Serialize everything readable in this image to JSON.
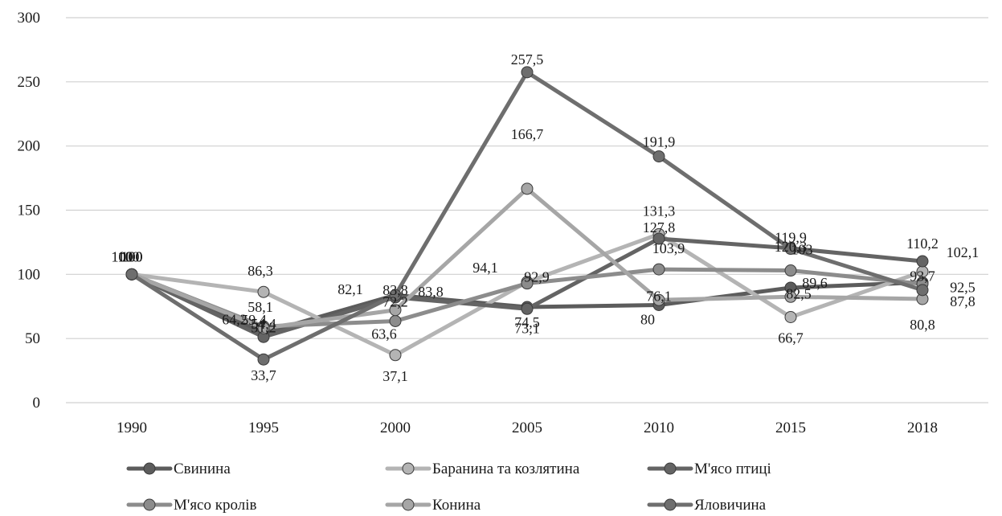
{
  "chart_data": {
    "type": "line",
    "title": "",
    "xlabel": "",
    "ylabel": "",
    "categories": [
      "1990",
      "1995",
      "2000",
      "2005",
      "2010",
      "2015",
      "2018"
    ],
    "ylim": [
      0,
      300
    ],
    "yticks": [
      0,
      50,
      100,
      150,
      200,
      250,
      300
    ],
    "grid": true,
    "legend_position": "bottom",
    "series": [
      {
        "name": "Свинина",
        "color": "#5c5c5c",
        "values": [
          100,
          54.4,
          83.8,
          74.5,
          76.1,
          89.6,
          93.7
        ],
        "labels": [
          "100",
          "54,4",
          "83,8",
          "74,5",
          "76,1",
          "89,6",
          "93,7"
        ]
      },
      {
        "name": "Баранина  та козлятина",
        "color": "#b4b4b4",
        "values": [
          100,
          86.3,
          37.1,
          94.1,
          131.3,
          66.7,
          102.1
        ],
        "labels": [
          "100",
          "86,3",
          "37,1",
          "94,1",
          "131,3",
          "66,7",
          "102,1"
        ]
      },
      {
        "name": "М'ясо птиці",
        "color": "#646464",
        "values": [
          100,
          51.2,
          82.1,
          73.1,
          127.8,
          120.3,
          110.2
        ],
        "labels": [
          "100",
          "51,2",
          "82,1",
          "73,1",
          "127,8",
          "120,3",
          "110,2"
        ]
      },
      {
        "name": "М'ясо кролів",
        "color": "#8c8c8c",
        "values": [
          100,
          59.4,
          63.6,
          92.9,
          103.9,
          103,
          92.5
        ],
        "labels": [
          "100",
          "59,4",
          "63,6",
          "92,9",
          "103,9",
          "103",
          "92,5"
        ]
      },
      {
        "name": "Конина",
        "color": "#a6a6a6",
        "values": [
          100,
          58.1,
          72.2,
          166.7,
          80,
          82.5,
          80.8
        ],
        "labels": [
          "100",
          "58,1",
          "72,2",
          "166,7",
          "80",
          "82,5",
          "80,8"
        ]
      },
      {
        "name": "Яловичина",
        "color": "#6e6e6e",
        "values": [
          100,
          33.7,
          83.8,
          257.5,
          191.9,
          119.9,
          87.8
        ],
        "labels": [
          "100",
          "33,7",
          "83,8",
          "257,5",
          "191,9",
          "119,9",
          "87,8"
        ]
      }
    ],
    "extra_labels": [
      "64,2"
    ]
  }
}
